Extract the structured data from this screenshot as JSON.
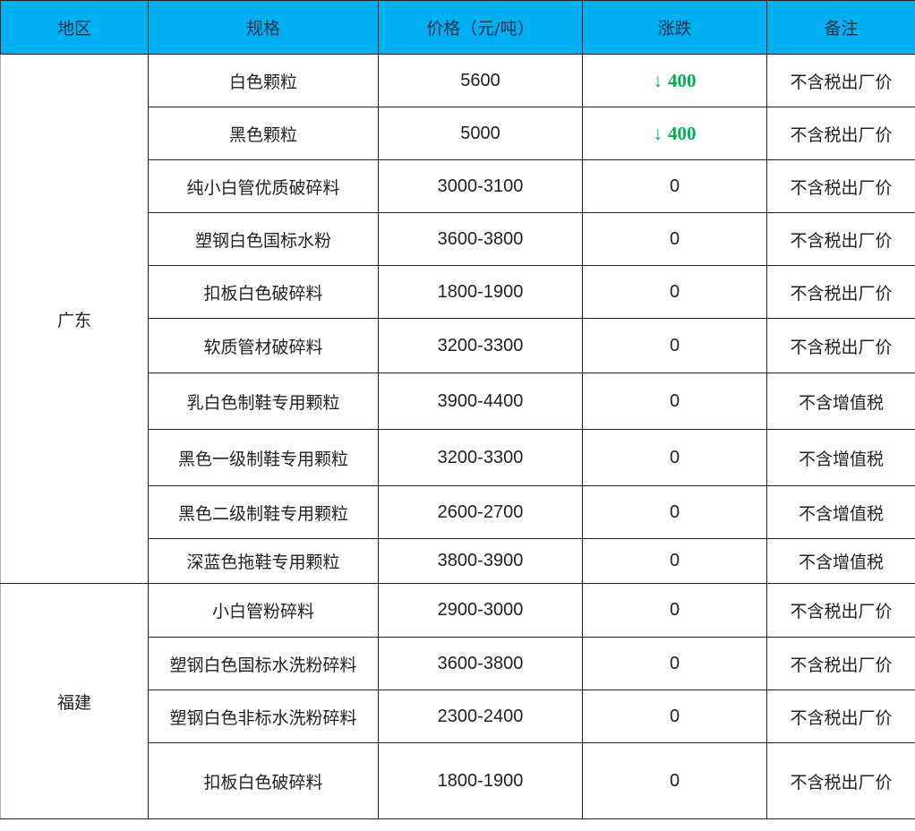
{
  "headers": [
    "地区",
    "规格",
    "价格（元/吨）",
    "涨跌",
    "备注"
  ],
  "colors": {
    "header_bg": "#00b0f0",
    "down": "#00b050"
  },
  "groups": [
    {
      "region": "广东",
      "rows": [
        {
          "spec": "白色颗粒",
          "price": "5600",
          "change": "400",
          "change_dir": "down",
          "note": "不含税出厂价"
        },
        {
          "spec": "黑色颗粒",
          "price": "5000",
          "change": "400",
          "change_dir": "down",
          "note": "不含税出厂价"
        },
        {
          "spec": "纯小白管优质破碎料",
          "price": "3000-3100",
          "change": "0",
          "note": "不含税出厂价"
        },
        {
          "spec": "塑钢白色国标水粉",
          "price": "3600-3800",
          "change": "0",
          "note": "不含税出厂价"
        },
        {
          "spec": "扣板白色破碎料",
          "price": "1800-1900",
          "change": "0",
          "note": "不含税出厂价"
        },
        {
          "spec": "软质管材破碎料",
          "price": "3200-3300",
          "change": "0",
          "note": "不含税出厂价"
        },
        {
          "spec": "乳白色制鞋专用颗粒",
          "price": "3900-4400",
          "change": "0",
          "note": "不含增值税"
        },
        {
          "spec": "黑色一级制鞋专用颗粒",
          "price": "3200-3300",
          "change": "0",
          "note": "不含增值税"
        },
        {
          "spec": "黑色二级制鞋专用颗粒",
          "price": "2600-2700",
          "change": "0",
          "note": "不含增值税"
        },
        {
          "spec": "深蓝色拖鞋专用颗粒",
          "price": "3800-3900",
          "change": "0",
          "note": "不含增值税"
        }
      ]
    },
    {
      "region": "福建",
      "rows": [
        {
          "spec": "小白管粉碎料",
          "price": "2900-3000",
          "change": "0",
          "note": "不含税出厂价"
        },
        {
          "spec": "塑钢白色国标水洗粉碎料",
          "price": "3600-3800",
          "change": "0",
          "note": "不含税出厂价"
        },
        {
          "spec": "塑钢白色非标水洗粉碎料",
          "price": "2300-2400",
          "change": "0",
          "note": "不含税出厂价"
        },
        {
          "spec": "扣板白色破碎料",
          "price": "1800-1900",
          "change": "0",
          "note": "不含税出厂价"
        }
      ]
    }
  ]
}
